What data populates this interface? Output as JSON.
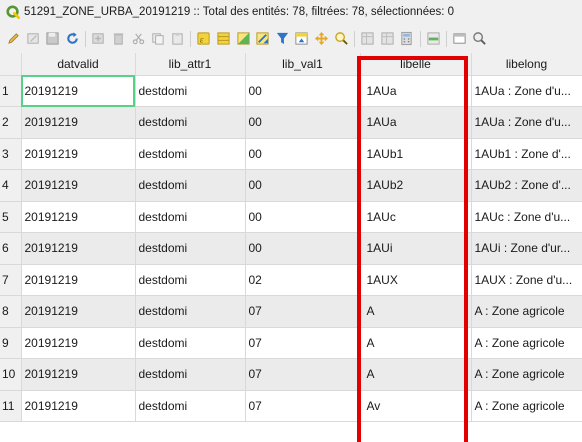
{
  "window": {
    "title": "51291_ZONE_URBA_20191219 :: Total des entités: 78, filtrées: 78, sélectionnées: 0"
  },
  "toolbar": {
    "icons": [
      "pencil-icon",
      "multi-edit-icon",
      "save-edits-icon",
      "reload-icon",
      "add-feature-icon",
      "delete-feature-icon",
      "cut-icon",
      "copy-icon",
      "paste-icon",
      "expression-select-icon",
      "select-all-icon",
      "invert-selection-icon",
      "deselect-all-icon",
      "filter-select-icon",
      "move-selection-top-icon",
      "pan-map-icon",
      "zoom-map-icon",
      "new-field-icon",
      "delete-field-icon",
      "field-calculator-icon",
      "conditional-formatting-icon",
      "dock-icon",
      "zoom-table-icon"
    ]
  },
  "table": {
    "columns": [
      "datvalid",
      "lib_attr1",
      "lib_val1",
      "libelle",
      "libelong"
    ],
    "rows": [
      {
        "n": "1",
        "datvalid": "20191219",
        "lib_attr1": "destdomi",
        "lib_val1": "00",
        "libelle": "1AUa",
        "libelong": "1AUa : Zone d'u..."
      },
      {
        "n": "2",
        "datvalid": "20191219",
        "lib_attr1": "destdomi",
        "lib_val1": "00",
        "libelle": "1AUa",
        "libelong": "1AUa : Zone d'u..."
      },
      {
        "n": "3",
        "datvalid": "20191219",
        "lib_attr1": "destdomi",
        "lib_val1": "00",
        "libelle": "1AUb1",
        "libelong": "1AUb1 : Zone d'..."
      },
      {
        "n": "4",
        "datvalid": "20191219",
        "lib_attr1": "destdomi",
        "lib_val1": "00",
        "libelle": "1AUb2",
        "libelong": "1AUb2 : Zone d'..."
      },
      {
        "n": "5",
        "datvalid": "20191219",
        "lib_attr1": "destdomi",
        "lib_val1": "00",
        "libelle": "1AUc",
        "libelong": "1AUc : Zone d'u..."
      },
      {
        "n": "6",
        "datvalid": "20191219",
        "lib_attr1": "destdomi",
        "lib_val1": "00",
        "libelle": "1AUi",
        "libelong": "1AUi : Zone d'ur..."
      },
      {
        "n": "7",
        "datvalid": "20191219",
        "lib_attr1": "destdomi",
        "lib_val1": "02",
        "libelle": "1AUX",
        "libelong": "1AUX : Zone d'u..."
      },
      {
        "n": "8",
        "datvalid": "20191219",
        "lib_attr1": "destdomi",
        "lib_val1": "07",
        "libelle": "A",
        "libelong": "A : Zone agricole"
      },
      {
        "n": "9",
        "datvalid": "20191219",
        "lib_attr1": "destdomi",
        "lib_val1": "07",
        "libelle": "A",
        "libelong": "A : Zone agricole"
      },
      {
        "n": "10",
        "datvalid": "20191219",
        "lib_attr1": "destdomi",
        "lib_val1": "07",
        "libelle": "A",
        "libelong": "A : Zone agricole"
      },
      {
        "n": "11",
        "datvalid": "20191219",
        "lib_attr1": "destdomi",
        "lib_val1": "07",
        "libelle": "Av",
        "libelong": "A : Zone agricole"
      }
    ]
  },
  "colors": {
    "highlight": "#e30000",
    "selected_cell": "#56d187",
    "qgis_green": "#589632",
    "qgis_yellow": "#eec90d"
  }
}
